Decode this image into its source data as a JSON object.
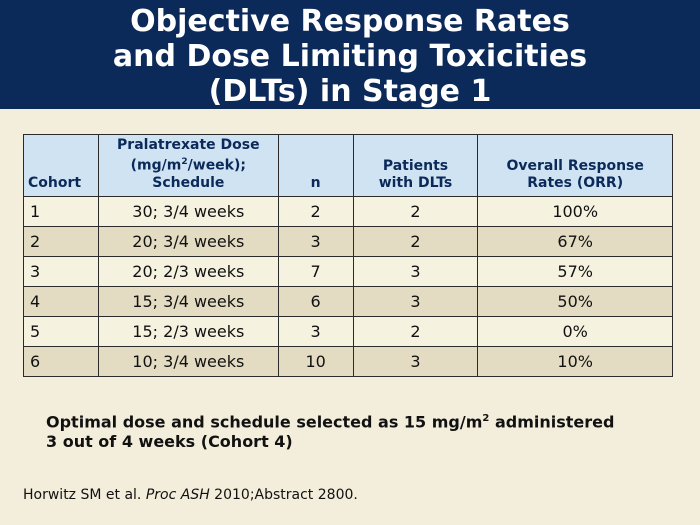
{
  "title": {
    "line1": "Objective Response Rates",
    "line2": "and Dose Limiting Toxicities",
    "line3": "(DLTs) in Stage 1"
  },
  "table": {
    "headers": {
      "cohort": "Cohort",
      "dose_line1": "Pralatrexate Dose",
      "dose_line2_pre": "(mg/m",
      "dose_line2_sup": "2",
      "dose_line2_post": "/week);",
      "dose_line3": "Schedule",
      "n": "n",
      "dlts_line1": "Patients",
      "dlts_line2": "with DLTs",
      "orr_line1": "Overall Response",
      "orr_line2": "Rates (ORR)"
    },
    "rows": [
      {
        "cohort": "1",
        "dose": "30; 3/4 weeks",
        "n": "2",
        "dlts": "2",
        "orr": "100%"
      },
      {
        "cohort": "2",
        "dose": "20; 3/4 weeks",
        "n": "3",
        "dlts": "2",
        "orr": "67%"
      },
      {
        "cohort": "3",
        "dose": "20; 2/3 weeks",
        "n": "7",
        "dlts": "3",
        "orr": "57%"
      },
      {
        "cohort": "4",
        "dose": "15; 3/4 weeks",
        "n": "6",
        "dlts": "3",
        "orr": "50%"
      },
      {
        "cohort": "5",
        "dose": "15; 2/3 weeks",
        "n": "3",
        "dlts": "2",
        "orr": "0%"
      },
      {
        "cohort": "6",
        "dose": "10; 3/4 weeks",
        "n": "10",
        "dlts": "3",
        "orr": "10%"
      }
    ]
  },
  "conclusion": {
    "pre": "Optimal dose and schedule selected as 15 mg/m",
    "sup": "2",
    "post": " administered",
    "line2": "3 out of 4 weeks (Cohort 4)"
  },
  "citation": {
    "authors": "Horwitz SM et al. ",
    "journal": "Proc ASH",
    "rest": " 2010;Abstract 2800."
  },
  "colors": {
    "banner": "#0b2a5a",
    "header_fill": "#cfe3f3",
    "row_light": "#f6f2e0",
    "row_dark": "#e3dcc2",
    "background": "#f3eedb"
  }
}
